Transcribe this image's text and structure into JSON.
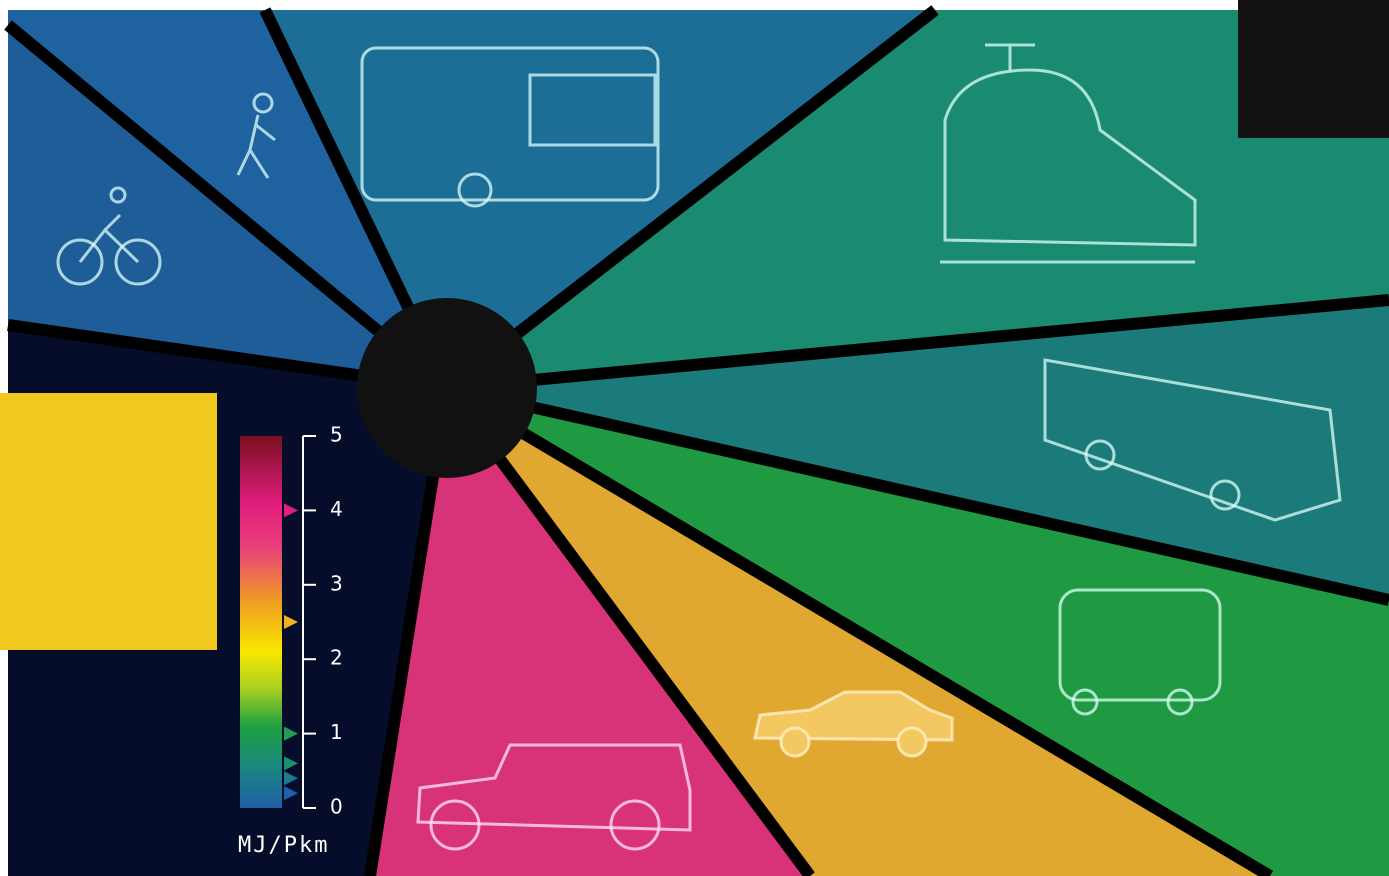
{
  "scale": {
    "unit": "MJ/Pkm",
    "range": [
      0,
      5
    ],
    "ticks": [
      0,
      1,
      2,
      3,
      4,
      5
    ],
    "markers": [
      {
        "value": 4.0,
        "color": "#e0207a"
      },
      {
        "value": 2.5,
        "color": "#f0b020"
      },
      {
        "value": 1.0,
        "color": "#1fa050"
      },
      {
        "value": 0.6,
        "color": "#1a9070"
      },
      {
        "value": 0.4,
        "color": "#1b7a90"
      },
      {
        "value": 0.2,
        "color": "#2060a8"
      }
    ]
  }
}
